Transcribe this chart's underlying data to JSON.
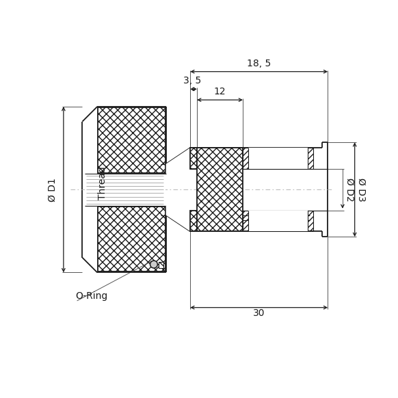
{
  "bg_color": "#ffffff",
  "line_color": "#1a1a1a",
  "lw": 1.3,
  "tlw": 0.8,
  "dlw": 0.9,
  "fs": 10,
  "labels": {
    "d1": "Ø D1",
    "d2": "Ø D2",
    "d3": "Ø D3",
    "thread": "Thread",
    "oring": "O-Ring",
    "dim_185": "18, 5",
    "dim_35": "3, 5",
    "dim_12": "12",
    "dim_30": "30"
  }
}
